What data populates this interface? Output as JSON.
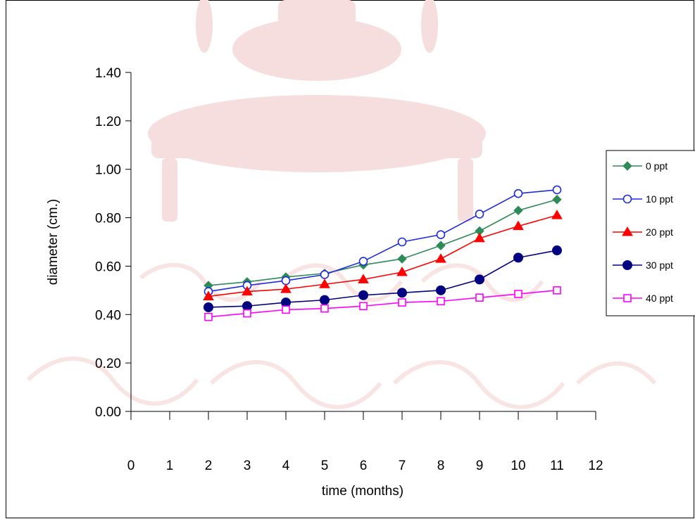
{
  "chart_data": {
    "type": "line",
    "title": "",
    "xlabel": "time (months)",
    "ylabel": "diameter (cm.)",
    "xlim": [
      0,
      12
    ],
    "ylim": [
      0,
      1.4
    ],
    "x_ticks": [
      "0",
      "1",
      "2",
      "3",
      "4",
      "5",
      "6",
      "7",
      "8",
      "9",
      "10",
      "11",
      "12"
    ],
    "y_ticks": [
      "0.00",
      "0.20",
      "0.40",
      "0.60",
      "0.80",
      "1.00",
      "1.20",
      "1.40"
    ],
    "grid": false,
    "legend_position": "right",
    "x": [
      2,
      3,
      4,
      5,
      6,
      7,
      8,
      9,
      10,
      11
    ],
    "series": [
      {
        "name": "0 ppt",
        "color": "#2e8b57",
        "marker": "diamond",
        "values": [
          0.52,
          0.535,
          0.555,
          0.57,
          0.605,
          0.63,
          0.685,
          0.745,
          0.83,
          0.875
        ]
      },
      {
        "name": "10 ppt",
        "color": "#1e2bdc",
        "marker": "circle-open",
        "values": [
          0.495,
          0.52,
          0.54,
          0.565,
          0.62,
          0.7,
          0.73,
          0.815,
          0.9,
          0.915
        ]
      },
      {
        "name": "20 ppt",
        "color": "#ff0000",
        "marker": "triangle",
        "values": [
          0.475,
          0.495,
          0.505,
          0.525,
          0.545,
          0.575,
          0.63,
          0.715,
          0.765,
          0.81
        ]
      },
      {
        "name": "30 ppt",
        "color": "#000080",
        "marker": "circle",
        "values": [
          0.43,
          0.435,
          0.45,
          0.46,
          0.48,
          0.49,
          0.5,
          0.545,
          0.635,
          0.665
        ]
      },
      {
        "name": "40 ppt",
        "color": "#ff00ff",
        "marker": "square-open",
        "values": [
          0.39,
          0.405,
          0.42,
          0.425,
          0.435,
          0.45,
          0.455,
          0.47,
          0.485,
          0.5
        ]
      }
    ]
  }
}
